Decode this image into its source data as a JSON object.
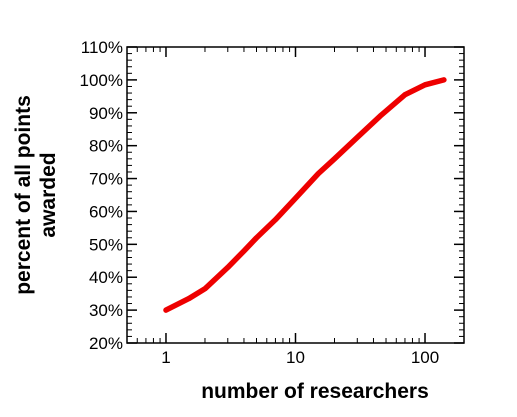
{
  "chart_data": {
    "type": "line",
    "xscale": "log",
    "xlim": [
      0.5,
      200
    ],
    "ylim": [
      20,
      110
    ],
    "xlabel": "number of researchers",
    "ylabel_line1": "percent of all points",
    "ylabel_line2": "awarded",
    "x_ticks": [
      {
        "value": 1,
        "label": "1"
      },
      {
        "value": 10,
        "label": "10"
      },
      {
        "value": 100,
        "label": "100"
      }
    ],
    "y_ticks": [
      {
        "value": 20,
        "label": "20%"
      },
      {
        "value": 30,
        "label": "30%"
      },
      {
        "value": 40,
        "label": "40%"
      },
      {
        "value": 50,
        "label": "50%"
      },
      {
        "value": 60,
        "label": "60%"
      },
      {
        "value": 70,
        "label": "70%"
      },
      {
        "value": 80,
        "label": "80%"
      },
      {
        "value": 90,
        "label": "90%"
      },
      {
        "value": 100,
        "label": "100%"
      },
      {
        "value": 110,
        "label": "110%"
      }
    ],
    "grid": false,
    "series": [
      {
        "color": "#ee0000",
        "x": [
          1,
          1.5,
          2,
          3,
          4,
          5,
          7,
          10,
          15,
          20,
          30,
          45,
          70,
          100,
          140
        ],
        "y": [
          30,
          33.5,
          36.5,
          43,
          48,
          52,
          57.5,
          64,
          71.5,
          76,
          82.5,
          89,
          95.5,
          98.5,
          100
        ]
      }
    ]
  }
}
